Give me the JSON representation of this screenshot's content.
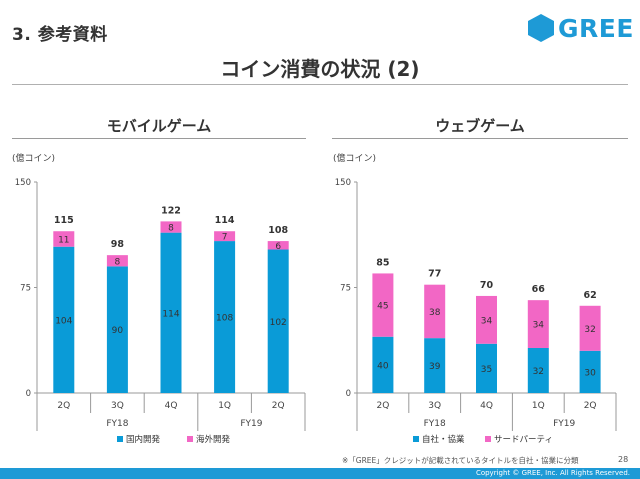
{
  "header": {
    "section_title": "3. 参考資料",
    "logo_text": "GREE",
    "slide_title": "コイン消費の状況 (2)"
  },
  "colors": {
    "blue": "#0a9bd7",
    "pink": "#f267c5",
    "brand": "#1e9ad6"
  },
  "chart_data": [
    {
      "type": "bar",
      "stacked": true,
      "title": "モバイルゲーム",
      "unit_label": "(億コイン)",
      "categories": [
        "2Q",
        "3Q",
        "4Q",
        "1Q",
        "2Q"
      ],
      "groups": [
        {
          "label": "FY18",
          "span": [
            0,
            2
          ]
        },
        {
          "label": "FY19",
          "span": [
            3,
            4
          ]
        }
      ],
      "series": [
        {
          "name": "国内開発",
          "color": "#0a9bd7",
          "values": [
            104,
            90,
            114,
            108,
            102
          ]
        },
        {
          "name": "海外開発",
          "color": "#f267c5",
          "values": [
            11,
            8,
            8,
            7,
            6
          ]
        }
      ],
      "totals": [
        115,
        98,
        122,
        114,
        108
      ],
      "ylim": [
        0,
        150
      ],
      "yticks": [
        0,
        75,
        150
      ],
      "legend_position": "bottom",
      "grid": false
    },
    {
      "type": "bar",
      "stacked": true,
      "title": "ウェブゲーム",
      "unit_label": "(億コイン)",
      "categories": [
        "2Q",
        "3Q",
        "4Q",
        "1Q",
        "2Q"
      ],
      "groups": [
        {
          "label": "FY18",
          "span": [
            0,
            2
          ]
        },
        {
          "label": "FY19",
          "span": [
            3,
            4
          ]
        }
      ],
      "series": [
        {
          "name": "自社・協業",
          "color": "#0a9bd7",
          "values": [
            40,
            39,
            35,
            32,
            30
          ]
        },
        {
          "name": "サードパーティ",
          "color": "#f267c5",
          "values": [
            45,
            38,
            34,
            34,
            32
          ]
        }
      ],
      "totals": [
        85,
        77,
        70,
        66,
        62
      ],
      "ylim": [
        0,
        150
      ],
      "yticks": [
        0,
        75,
        150
      ],
      "legend_position": "bottom",
      "grid": false
    }
  ],
  "footer": {
    "footnote": "※「GREE」クレジットが記載されているタイトルを自社・協業に分類",
    "page_number": "28",
    "copyright": "Copyright © GREE, Inc. All Rights Reserved."
  }
}
